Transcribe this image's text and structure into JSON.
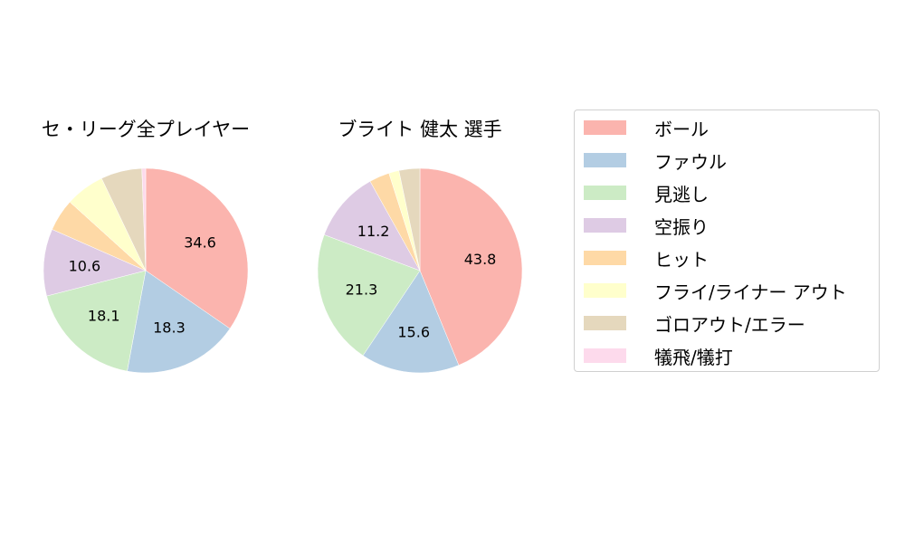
{
  "chart_data": [
    {
      "type": "pie",
      "title": "セ・リーグ全プレイヤー",
      "categories": [
        "ボール",
        "ファウル",
        "見逃し",
        "空振り",
        "ヒット",
        "フライ/ライナー アウト",
        "ゴロアウト/エラー",
        "犠飛/犠打"
      ],
      "values": [
        34.6,
        18.3,
        18.1,
        10.6,
        5.1,
        6.2,
        6.5,
        0.6
      ],
      "labels_shown": [
        "34.6",
        "18.3",
        "18.1",
        "10.6",
        "",
        "",
        "",
        ""
      ],
      "start_angle": 90,
      "direction": "clockwise"
    },
    {
      "type": "pie",
      "title": "ブライト 健太  選手",
      "categories": [
        "ボール",
        "ファウル",
        "見逃し",
        "空振り",
        "ヒット",
        "フライ/ライナー アウト",
        "ゴロアウト/エラー",
        "犠飛/犠打"
      ],
      "values": [
        43.8,
        15.6,
        21.3,
        11.2,
        3.2,
        1.6,
        3.3,
        0.0
      ],
      "labels_shown": [
        "43.8",
        "15.6",
        "21.3",
        "11.2",
        "",
        "",
        "",
        ""
      ],
      "start_angle": 90,
      "direction": "clockwise"
    }
  ],
  "titles": {
    "left": "セ・リーグ全プレイヤー",
    "right": "ブライト 健太  選手"
  },
  "legend": {
    "position": "right",
    "items": [
      {
        "label": "ボール",
        "color": "#fbb4ae"
      },
      {
        "label": "ファウル",
        "color": "#b3cde3"
      },
      {
        "label": "見逃し",
        "color": "#ccebc5"
      },
      {
        "label": "空振り",
        "color": "#decbe4"
      },
      {
        "label": "ヒット",
        "color": "#fed9a6"
      },
      {
        "label": "フライ/ライナー アウト",
        "color": "#ffffcc"
      },
      {
        "label": "ゴロアウト/エラー",
        "color": "#e5d8bd"
      },
      {
        "label": "犠飛/犠打",
        "color": "#fddaec"
      }
    ]
  }
}
